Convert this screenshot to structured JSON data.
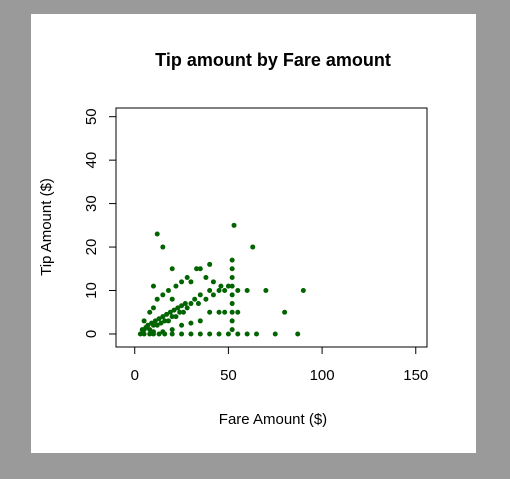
{
  "chart_data": {
    "type": "scatter",
    "title": "Tip amount by Fare amount",
    "x_label": "Fare Amount ($)",
    "y_label": "Tip Amount ($)",
    "color": "#006400",
    "x": [
      3,
      5,
      8,
      10,
      13,
      16,
      20,
      25,
      30,
      35,
      40,
      45,
      50,
      55,
      60,
      65,
      75,
      87,
      5,
      6,
      7,
      8,
      9,
      10,
      11,
      12,
      13,
      14,
      15,
      16,
      17,
      18,
      19,
      20,
      21,
      22,
      23,
      24,
      25,
      26,
      27,
      28,
      30,
      32,
      34,
      35,
      38,
      40,
      42,
      45,
      48,
      50,
      8,
      10,
      12,
      15,
      18,
      20,
      22,
      25,
      28,
      30,
      33,
      38,
      40,
      15,
      20,
      25,
      30,
      35,
      40,
      45,
      10,
      5,
      4,
      52,
      52,
      52,
      52,
      52,
      52,
      52,
      52,
      52,
      55,
      48,
      12,
      15,
      53,
      63,
      10,
      20,
      35,
      46,
      70,
      90,
      80,
      60,
      42,
      55
    ],
    "values": [
      0,
      0,
      0,
      0,
      0,
      0,
      0,
      0,
      0,
      0,
      0,
      0,
      0,
      0,
      0,
      0,
      0,
      0,
      1,
      1.5,
      2,
      1,
      2.5,
      2,
      3,
      2,
      3.5,
      2.5,
      4,
      3,
      4.5,
      3,
      5,
      4,
      5.5,
      4,
      6,
      5,
      6.5,
      5,
      7,
      6,
      7,
      8,
      7,
      9,
      8,
      10,
      9,
      10,
      10,
      11,
      5,
      6,
      8,
      9,
      10,
      8,
      11,
      12,
      13,
      12,
      15,
      13,
      16,
      0.5,
      1,
      2,
      2.5,
      3,
      5,
      5,
      0.5,
      3,
      1,
      1,
      3,
      5,
      7,
      9,
      11,
      13,
      15,
      17,
      5,
      5,
      23,
      20,
      25,
      20,
      11,
      15,
      15,
      11,
      10,
      10,
      5,
      10,
      12,
      10
    ],
    "xlim": [
      -10,
      156
    ],
    "ylim": [
      -3,
      52
    ],
    "xticks": [
      0,
      50,
      100,
      150
    ],
    "yticks": [
      0,
      10,
      20,
      30,
      40,
      50
    ]
  }
}
